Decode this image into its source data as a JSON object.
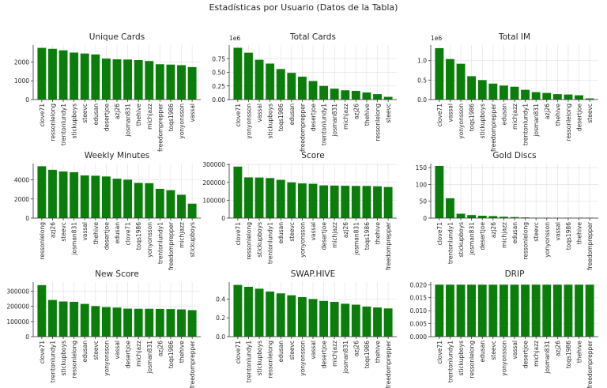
{
  "suptitle": "Estadísticas por Usuario (Datos de la Tabla)",
  "bar_color": "#0a7d0a",
  "chart_data": [
    {
      "type": "bar",
      "title": "Unique Cards",
      "offset_label": "",
      "categories": [
        "clove71",
        "ressonlelong",
        "trentonlundy1",
        "stickupboys",
        "steevc",
        "edusan",
        "desertjoe",
        "azj26",
        "josman831",
        "thehive",
        "michjazz",
        "freedomprepper",
        "toqs1986",
        "yonyonsson",
        "vassal"
      ],
      "values": [
        2750,
        2700,
        2620,
        2500,
        2450,
        2400,
        2180,
        2140,
        2130,
        2100,
        2050,
        1880,
        1860,
        1830,
        1730
      ],
      "ylim": [
        0,
        2900
      ],
      "yticks": [
        0,
        1000,
        2000
      ],
      "ytick_labels": [
        "0",
        "1000",
        "2000"
      ],
      "grid": true
    },
    {
      "type": "bar",
      "title": "Total Cards",
      "offset_label": "1e6",
      "categories": [
        "clove71",
        "yonyonsson",
        "vassal",
        "stickupboys",
        "toqs1986",
        "edusan",
        "freedomprepper",
        "desertjoe",
        "trentonlundy1",
        "josman831",
        "michjazz",
        "azj26",
        "thehive",
        "ressonlelong",
        "steevc"
      ],
      "values": [
        0.95,
        0.86,
        0.73,
        0.66,
        0.56,
        0.49,
        0.42,
        0.34,
        0.25,
        0.2,
        0.17,
        0.16,
        0.13,
        0.1,
        0.05
      ],
      "ylim": [
        0,
        1.0
      ],
      "yticks": [
        0,
        0.25,
        0.5,
        0.75
      ],
      "ytick_labels": [
        "0.00",
        "0.25",
        "0.50",
        "0.75"
      ],
      "grid": true
    },
    {
      "type": "bar",
      "title": "Total IM",
      "offset_label": "1e6",
      "categories": [
        "clove71",
        "vassal",
        "yonyonsson",
        "toqs1986",
        "stickupboys",
        "freedomprepper",
        "edusan",
        "michjazz",
        "trentonlundy1",
        "josman831",
        "azj26",
        "thehive",
        "ressonlelong",
        "desertjoe",
        "steevc"
      ],
      "values": [
        1.32,
        1.04,
        0.92,
        0.6,
        0.5,
        0.41,
        0.36,
        0.33,
        0.25,
        0.19,
        0.17,
        0.14,
        0.13,
        0.11,
        0.03
      ],
      "ylim": [
        0,
        1.4
      ],
      "yticks": [
        0,
        0.5,
        1.0
      ],
      "ytick_labels": [
        "0.0",
        "0.5",
        "1.0"
      ],
      "grid": true
    },
    {
      "type": "bar",
      "title": "Weekly Minutes",
      "offset_label": "",
      "categories": [
        "ressonlelong",
        "azj26",
        "steevc",
        "josman831",
        "vassal",
        "thehive",
        "desertjoe",
        "edusan",
        "clove71",
        "toqs1986",
        "yonyonsson",
        "trentonlundy1",
        "freedomprepper",
        "michjazz",
        "stickupboys"
      ],
      "values": [
        5420,
        5050,
        4870,
        4800,
        4460,
        4430,
        4350,
        4120,
        4020,
        3680,
        3650,
        3060,
        2920,
        2440,
        1510
      ],
      "ylim": [
        0,
        5700
      ],
      "yticks": [
        0,
        2000,
        4000
      ],
      "ytick_labels": [
        "0",
        "2000",
        "4000"
      ],
      "grid": true
    },
    {
      "type": "bar",
      "title": "Score",
      "offset_label": "",
      "categories": [
        "clove71",
        "ressonlelong",
        "stickupboys",
        "trentonlundy1",
        "edusan",
        "steevc",
        "yonyonsson",
        "vassal",
        "desertjoe",
        "michjazz",
        "azj26",
        "josman831",
        "toqs1986",
        "thehive",
        "freedomprepper"
      ],
      "values": [
        288000,
        228000,
        227000,
        224000,
        214000,
        200000,
        194000,
        192000,
        183000,
        182000,
        181000,
        180000,
        180000,
        178000,
        174000
      ],
      "ylim": [
        0,
        305000
      ],
      "yticks": [
        0,
        100000,
        200000,
        300000
      ],
      "ytick_labels": [
        "0",
        "100000",
        "200000",
        "300000"
      ],
      "grid": true
    },
    {
      "type": "bar",
      "title": "Gold Discs",
      "offset_label": "",
      "categories": [
        "clove71",
        "trentonlundy1",
        "stickupboys",
        "josman831",
        "desertjoe",
        "azj26",
        "michjazz",
        "edusan",
        "ressonlelong",
        "steevc",
        "yonyonsson",
        "vassal",
        "toqs1986",
        "thehive",
        "freedomprepper"
      ],
      "values": [
        155,
        59,
        13,
        9,
        7,
        6,
        4,
        3,
        2,
        1,
        1,
        1,
        1,
        1,
        1
      ],
      "ylim": [
        0,
        162
      ],
      "yticks": [
        0,
        50,
        100,
        150
      ],
      "ytick_labels": [
        "0",
        "50",
        "100",
        "150"
      ],
      "grid": true
    },
    {
      "type": "bar",
      "title": "New Score",
      "offset_label": "",
      "categories": [
        "clove71",
        "trentonlundy1",
        "stickupboys",
        "ressonlelong",
        "edusan",
        "steevc",
        "yonyonsson",
        "vassal",
        "desertjoe",
        "michjazz",
        "josman831",
        "azj26",
        "toqs1986",
        "thehive",
        "freedomprepper"
      ],
      "values": [
        340000,
        242000,
        232000,
        230000,
        216000,
        202000,
        195000,
        192000,
        185000,
        184000,
        184000,
        183000,
        182000,
        180000,
        175000
      ],
      "ylim": [
        0,
        360000
      ],
      "yticks": [
        0,
        100000,
        200000,
        300000
      ],
      "ytick_labels": [
        "0",
        "100000",
        "200000",
        "300000"
      ],
      "grid": true
    },
    {
      "type": "bar",
      "title": "SWAP.HIVE",
      "offset_label": "",
      "categories": [
        "clove71",
        "trentonlundy1",
        "stickupboys",
        "ressonlelong",
        "edusan",
        "steevc",
        "yonyonsson",
        "vassal",
        "desertjoe",
        "michjazz",
        "josman831",
        "azj26",
        "toqs1986",
        "thehive",
        "freedomprepper"
      ],
      "values": [
        0.55,
        0.53,
        0.51,
        0.48,
        0.46,
        0.44,
        0.42,
        0.4,
        0.38,
        0.37,
        0.35,
        0.34,
        0.32,
        0.31,
        0.3
      ],
      "ylim": [
        0,
        0.58
      ],
      "yticks": [
        0,
        0.2,
        0.4
      ],
      "ytick_labels": [
        "0.0",
        "0.2",
        "0.4"
      ],
      "grid": true
    },
    {
      "type": "bar",
      "title": "DRIP",
      "offset_label": "",
      "categories": [
        "clove71",
        "trentonlundy1",
        "stickupboys",
        "ressonlelong",
        "edusan",
        "steevc",
        "yonyonsson",
        "vassal",
        "desertjoe",
        "michjazz",
        "josman831",
        "azj26",
        "toqs1986",
        "thehive",
        "freedomprepper"
      ],
      "values": [
        0.02,
        0.02,
        0.02,
        0.02,
        0.02,
        0.02,
        0.02,
        0.02,
        0.02,
        0.02,
        0.02,
        0.02,
        0.02,
        0.02,
        0.02
      ],
      "ylim": [
        0,
        0.021
      ],
      "yticks": [
        0,
        0.005,
        0.01,
        0.015,
        0.02
      ],
      "ytick_labels": [
        "0.000",
        "0.005",
        "0.010",
        "0.015",
        "0.020"
      ],
      "grid": true
    }
  ]
}
